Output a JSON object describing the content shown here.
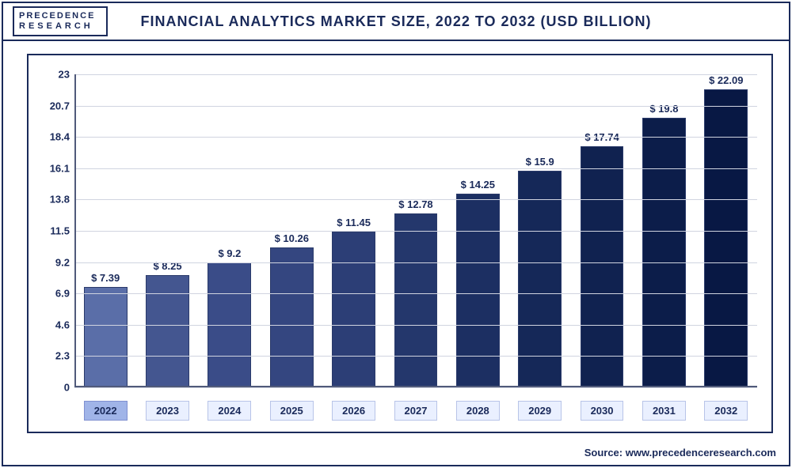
{
  "logo": {
    "line1": "PRECEDENCE",
    "line2": "RESEARCH"
  },
  "title": "FINANCIAL ANALYTICS MARKET SIZE, 2022 TO 2032 (USD BILLION)",
  "source": "Source: www.precedenceresearch.com",
  "chart": {
    "type": "bar",
    "categories": [
      "2022",
      "2023",
      "2024",
      "2025",
      "2026",
      "2027",
      "2028",
      "2029",
      "2030",
      "2031",
      "2032"
    ],
    "values": [
      7.39,
      8.25,
      9.2,
      10.26,
      11.45,
      12.78,
      14.25,
      15.9,
      17.74,
      19.8,
      22.09
    ],
    "value_labels": [
      "$ 7.39",
      "$ 8.25",
      "$ 9.2",
      "$ 10.26",
      "$ 11.45",
      "$ 12.78",
      "$ 14.25",
      "$ 15.9",
      "$ 17.74",
      "$ 19.8",
      "$ 22.09"
    ],
    "bar_colors": [
      "#5a6ea8",
      "#445690",
      "#3a4c88",
      "#344680",
      "#2c3e76",
      "#24376c",
      "#1c2f62",
      "#152858",
      "#102250",
      "#0c1d4a",
      "#081844"
    ],
    "highlight_index": 0,
    "ylim": [
      0,
      23
    ],
    "yticks": [
      0,
      2.3,
      4.6,
      6.9,
      9.2,
      11.5,
      13.8,
      16.1,
      18.4,
      20.7,
      23
    ],
    "ytick_labels": [
      "0",
      "2.3",
      "4.6",
      "6.9",
      "9.2",
      "11.5",
      "13.8",
      "16.1",
      "18.4",
      "20.7",
      "23"
    ],
    "grid_color": "#d0d4e0",
    "axis_color": "#505a7a",
    "frame_color": "#1a2a5a",
    "background_color": "#ffffff",
    "title_fontsize": 18,
    "label_fontsize": 13,
    "bar_width": 0.7,
    "bar_border_color": "#2a3a6a",
    "xlabel_bg": "#eaf0ff",
    "xlabel_border": "#b8c4e8",
    "xlabel_active_bg": "#a0b4e8",
    "text_color": "#1a2a5a"
  }
}
